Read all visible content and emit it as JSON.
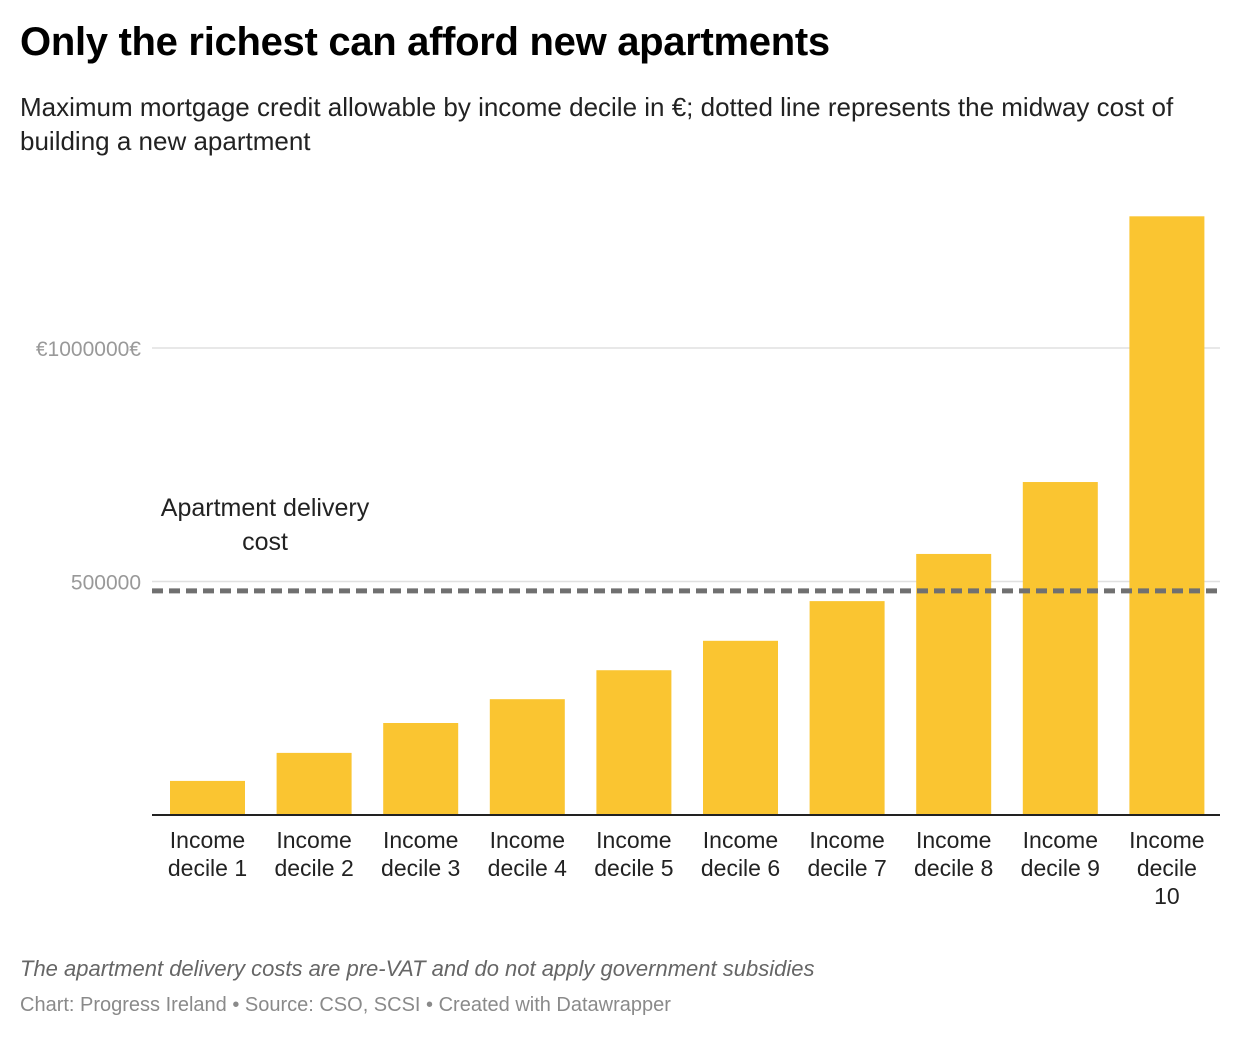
{
  "title": "Only the richest can afford new apartments",
  "subtitle": "Maximum mortgage credit allowable by income decile in €; dotted line represents the midway cost of building a new apartment",
  "note": "The apartment delivery costs are pre-VAT and do not apply government subsidies",
  "source": "Chart: Progress Ireland • Source: CSO, SCSI • Created with Datawrapper",
  "colors": {
    "bar": "#FAC531",
    "refline": "#707070",
    "grid": "#e0e0e0",
    "ticklabel": "#999999"
  },
  "chart_data": {
    "type": "bar",
    "categories": [
      [
        "Income",
        "decile 1"
      ],
      [
        "Income",
        "decile 2"
      ],
      [
        "Income",
        "decile 3"
      ],
      [
        "Income",
        "decile 4"
      ],
      [
        "Income",
        "decile 5"
      ],
      [
        "Income",
        "decile 6"
      ],
      [
        "Income",
        "decile 7"
      ],
      [
        "Income",
        "decile 8"
      ],
      [
        "Income",
        "decile 9"
      ],
      [
        "Income",
        "decile",
        "10"
      ]
    ],
    "values": [
      73000,
      133000,
      197000,
      248000,
      310000,
      373000,
      458000,
      559000,
      713000,
      1282000
    ],
    "yticks": [
      {
        "value": 500000,
        "label": "500000"
      },
      {
        "value": 1000000,
        "label": "€1000000€"
      }
    ],
    "ylim": [
      0,
      1300000
    ],
    "reference_line": {
      "value": 480000,
      "label": [
        "Apartment delivery",
        "cost"
      ],
      "style": "dashed"
    },
    "xlabel": "",
    "ylabel": ""
  }
}
